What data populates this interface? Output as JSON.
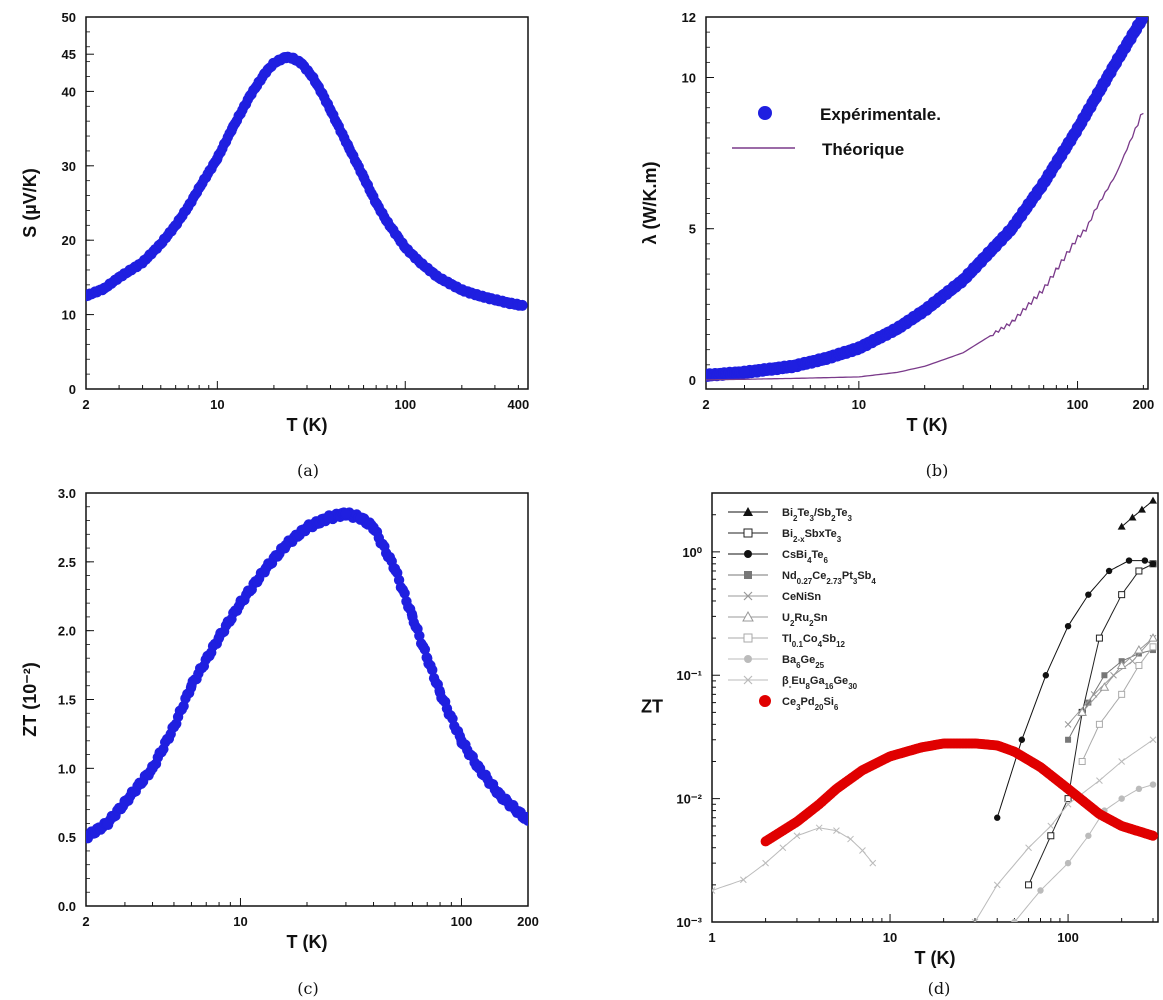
{
  "chart_data": [
    {
      "type": "scatter",
      "caption": "(a)",
      "xlabel": "T (K)",
      "ylabel": "S (µV/K)",
      "xscale": "log",
      "xlim": [
        2,
        450
      ],
      "ylim": [
        0,
        50
      ],
      "xticks": [
        "2",
        "10",
        "100",
        "400"
      ],
      "yticks": [
        "0",
        "10",
        "20",
        "30",
        "40",
        "45",
        "50"
      ],
      "series": [
        {
          "color": "#1f1fe0",
          "x": [
            2,
            2.5,
            3,
            4,
            5,
            6,
            7,
            8,
            10,
            12,
            15,
            18,
            20,
            23,
            25,
            28,
            32,
            36,
            40,
            50,
            60,
            70,
            80,
            100,
            120,
            150,
            200,
            250,
            300,
            350,
            420
          ],
          "y": [
            12.5,
            13.5,
            15,
            17,
            19.5,
            22,
            24.5,
            27,
            31,
            35,
            39.5,
            42.5,
            43.8,
            44.6,
            44.5,
            43.8,
            42,
            39.8,
            37.5,
            32.5,
            28.5,
            25,
            22.5,
            19,
            17,
            15,
            13.3,
            12.5,
            12,
            11.6,
            11.2
          ]
        }
      ]
    },
    {
      "type": "line",
      "caption": "(b)",
      "xlabel": "T (K)",
      "ylabel": "λ  (W/K.m)",
      "xscale": "log",
      "xlim": [
        2,
        210
      ],
      "ylim": [
        -0.3,
        12
      ],
      "xticks": [
        "2",
        "10",
        "100",
        "200"
      ],
      "yticks": [
        "0",
        "5",
        "10",
        "12"
      ],
      "legend": {
        "position": "upper-left"
      },
      "series": [
        {
          "name": "Expérimentale.",
          "color": "#1f1fe0",
          "x": [
            2,
            3,
            5,
            7,
            10,
            15,
            20,
            30,
            50,
            70,
            100,
            150,
            200
          ],
          "y": [
            0.15,
            0.25,
            0.45,
            0.7,
            1.05,
            1.7,
            2.3,
            3.3,
            5.0,
            6.5,
            8.3,
            10.5,
            12.0
          ]
        },
        {
          "name": "Théorique",
          "color": "#7a3a8a",
          "x": [
            2,
            5,
            10,
            15,
            20,
            30,
            50,
            70,
            90,
            100,
            110,
            120,
            150,
            200
          ],
          "y": [
            0,
            0.05,
            0.1,
            0.25,
            0.45,
            0.9,
            1.9,
            3.0,
            4.2,
            4.7,
            5.0,
            5.6,
            6.8,
            8.9
          ]
        }
      ]
    },
    {
      "type": "scatter",
      "caption": "(c)",
      "xlabel": "T (K)",
      "ylabel": "ZT  (10⁻²)",
      "xscale": "log",
      "xlim": [
        2,
        200
      ],
      "ylim": [
        0,
        3.0
      ],
      "xticks": [
        "2",
        "10",
        "100",
        "200"
      ],
      "yticks": [
        "0.0",
        "0.5",
        "1.0",
        "1.5",
        "2.0",
        "2.5",
        "3.0"
      ],
      "series": [
        {
          "color": "#1f1fe0",
          "x": [
            2,
            2.5,
            3,
            4,
            5,
            6,
            8,
            10,
            13,
            16,
            20,
            25,
            30,
            35,
            40,
            50,
            60,
            70,
            80,
            100,
            120,
            150,
            200
          ],
          "y": [
            0.5,
            0.6,
            0.75,
            1.0,
            1.3,
            1.6,
            1.95,
            2.2,
            2.45,
            2.62,
            2.75,
            2.82,
            2.85,
            2.82,
            2.75,
            2.45,
            2.1,
            1.8,
            1.55,
            1.2,
            1.0,
            0.8,
            0.62
          ]
        }
      ]
    },
    {
      "type": "line",
      "caption": "(d)",
      "xlabel": "T (K)",
      "ylabel": "ZT",
      "xscale": "log",
      "yscale": "log",
      "xlim": [
        1,
        320
      ],
      "ylim": [
        0.001,
        3
      ],
      "xticks": [
        "1",
        "10",
        "100"
      ],
      "yticks": [
        "10⁻³",
        "10⁻²",
        "10⁻¹",
        "10⁰"
      ],
      "legend": {
        "position": "upper-left"
      },
      "series": [
        {
          "name": "Bi2Te3/Sb2Te3",
          "marker": "triangle-filled",
          "color": "#111111",
          "x": [
            200,
            230,
            260,
            300
          ],
          "y": [
            1.6,
            1.9,
            2.2,
            2.6
          ]
        },
        {
          "name": "Bi2-xSbxTe3",
          "marker": "square-open",
          "color": "#222222",
          "x": [
            60,
            80,
            100,
            120,
            150,
            200,
            250,
            300
          ],
          "y": [
            0.002,
            0.005,
            0.01,
            0.05,
            0.2,
            0.45,
            0.7,
            0.8
          ]
        },
        {
          "name": "CsBi4Te6",
          "marker": "circle-filled",
          "color": "#111111",
          "x": [
            40,
            55,
            75,
            100,
            130,
            170,
            220,
            270,
            300
          ],
          "y": [
            0.007,
            0.03,
            0.1,
            0.25,
            0.45,
            0.7,
            0.85,
            0.85,
            0.8
          ]
        },
        {
          "name": "Nd0.27Ce2.73Pt3Sb4",
          "marker": "square-filled",
          "color": "#777777",
          "x": [
            100,
            130,
            160,
            200,
            250,
            300
          ],
          "y": [
            0.03,
            0.06,
            0.1,
            0.13,
            0.15,
            0.16
          ]
        },
        {
          "name": "CeNiSn",
          "marker": "x",
          "color": "#999999",
          "x": [
            100,
            140,
            180,
            230,
            300
          ],
          "y": [
            0.04,
            0.07,
            0.1,
            0.13,
            0.2
          ]
        },
        {
          "name": "U2Ru2Sn",
          "marker": "triangle-open",
          "color": "#999999",
          "x": [
            120,
            160,
            200,
            250,
            300
          ],
          "y": [
            0.05,
            0.08,
            0.12,
            0.16,
            0.2
          ]
        },
        {
          "name": "Tl0.1Co4Sb12",
          "marker": "square-open",
          "color": "#aaaaaa",
          "x": [
            120,
            150,
            200,
            250,
            300
          ],
          "y": [
            0.02,
            0.04,
            0.07,
            0.12,
            0.17
          ]
        },
        {
          "name": "Ba6Ge25",
          "marker": "circle-filled",
          "color": "#bbbbbb",
          "x": [
            50,
            70,
            100,
            130,
            160,
            200,
            250,
            300
          ],
          "y": [
            0.001,
            0.0018,
            0.003,
            0.005,
            0.008,
            0.01,
            0.012,
            0.013
          ]
        },
        {
          "name": "β-Eu8Ga16Ge30",
          "marker": "x",
          "color": "#bbbbbb",
          "x": [
            1,
            1.5,
            2,
            2.5,
            3,
            4,
            5,
            6,
            7,
            8,
            30,
            40,
            60,
            80,
            100,
            150,
            200,
            300
          ],
          "y": [
            0.0018,
            0.0022,
            0.003,
            0.004,
            0.005,
            0.0058,
            0.0055,
            0.0047,
            0.0038,
            0.003,
            0.001,
            0.002,
            0.004,
            0.006,
            0.009,
            0.014,
            0.02,
            0.03
          ]
        },
        {
          "name": "Ce3Pd20Si6",
          "marker": "circle-filled",
          "color": "#e00000",
          "x": [
            2,
            3,
            4,
            5,
            7,
            10,
            15,
            20,
            30,
            40,
            50,
            70,
            100,
            150,
            200,
            300
          ],
          "y": [
            0.0045,
            0.0065,
            0.009,
            0.012,
            0.017,
            0.022,
            0.026,
            0.028,
            0.028,
            0.027,
            0.024,
            0.018,
            0.012,
            0.0075,
            0.006,
            0.005
          ]
        }
      ]
    }
  ]
}
